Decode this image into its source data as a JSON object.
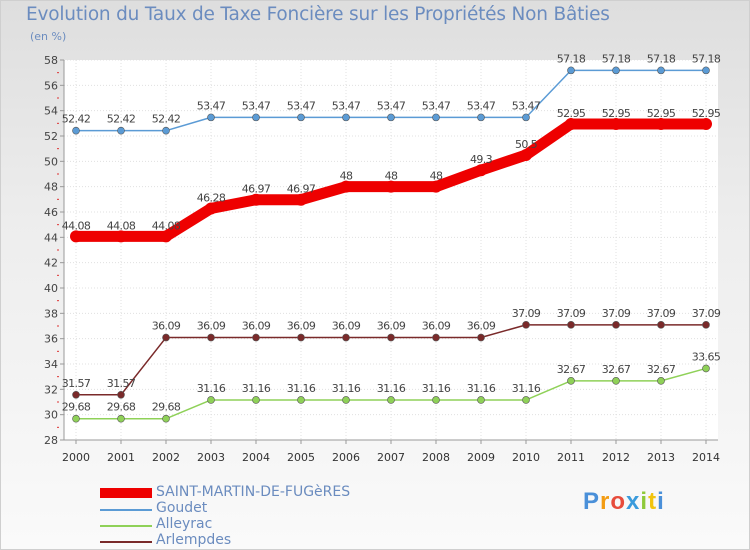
{
  "title": "Evolution du Taux de Taxe Foncière sur les Propriétés Non Bâties",
  "subtitle": "(en %)",
  "logo": "Proxiti",
  "chart_data": {
    "type": "line",
    "title": "Evolution du Taux de Taxe Foncière sur les Propriétés Non Bâties",
    "ylabel": "(en %)",
    "xlabel": "",
    "ylim": [
      28,
      58
    ],
    "yticks": [
      28,
      30,
      32,
      34,
      36,
      38,
      40,
      42,
      44,
      46,
      48,
      50,
      52,
      54,
      56,
      58
    ],
    "x": [
      "2000",
      "2001",
      "2002",
      "2003",
      "2004",
      "2005",
      "2006",
      "2007",
      "2008",
      "2009",
      "2010",
      "2011",
      "2012",
      "2013",
      "2014"
    ],
    "grid": true,
    "series": [
      {
        "name": "SAINT-MARTIN-DE-FUGèRES",
        "color": "#ee0000",
        "values": [
          44.08,
          44.08,
          44.08,
          46.28,
          46.97,
          46.97,
          48,
          48,
          48,
          49.3,
          50.5,
          52.95,
          52.95,
          52.95,
          52.95
        ],
        "labels": [
          "44.08",
          "44.08",
          "44.08",
          "46.28",
          "46.97",
          "46.97",
          "48",
          "48",
          "48",
          "49.3",
          "50.5",
          "52.95",
          "52.95",
          "52.95",
          "52.95"
        ]
      },
      {
        "name": "Goudet",
        "color": "#5b9bd5",
        "values": [
          52.42,
          52.42,
          52.42,
          53.47,
          53.47,
          53.47,
          53.47,
          53.47,
          53.47,
          53.47,
          53.47,
          57.18,
          57.18,
          57.18,
          57.18
        ],
        "labels": [
          "52.42",
          "52.42",
          "52.42",
          "53.47",
          "53.47",
          "53.47",
          "53.47",
          "53.47",
          "53.47",
          "53.47",
          "53.47",
          "57.18",
          "57.18",
          "57.18",
          "57.18"
        ]
      },
      {
        "name": "Alleyrac",
        "color": "#8fd158",
        "values": [
          29.68,
          29.68,
          29.68,
          31.16,
          31.16,
          31.16,
          31.16,
          31.16,
          31.16,
          31.16,
          31.16,
          32.67,
          32.67,
          32.67,
          33.65
        ],
        "labels": [
          "29.68",
          "29.68",
          "29.68",
          "31.16",
          "31.16",
          "31.16",
          "31.16",
          "31.16",
          "31.16",
          "31.16",
          "31.16",
          "32.67",
          "32.67",
          "32.67",
          "33.65"
        ]
      },
      {
        "name": "Arlempdes",
        "color": "#7a2a2a",
        "values": [
          31.57,
          31.57,
          36.09,
          36.09,
          36.09,
          36.09,
          36.09,
          36.09,
          36.09,
          36.09,
          37.09,
          37.09,
          37.09,
          37.09,
          37.09
        ],
        "labels": [
          "31.57",
          "31.57",
          "36.09",
          "36.09",
          "36.09",
          "36.09",
          "36.09",
          "36.09",
          "36.09",
          "36.09",
          "37.09",
          "37.09",
          "37.09",
          "37.09",
          "37.09"
        ]
      }
    ]
  }
}
